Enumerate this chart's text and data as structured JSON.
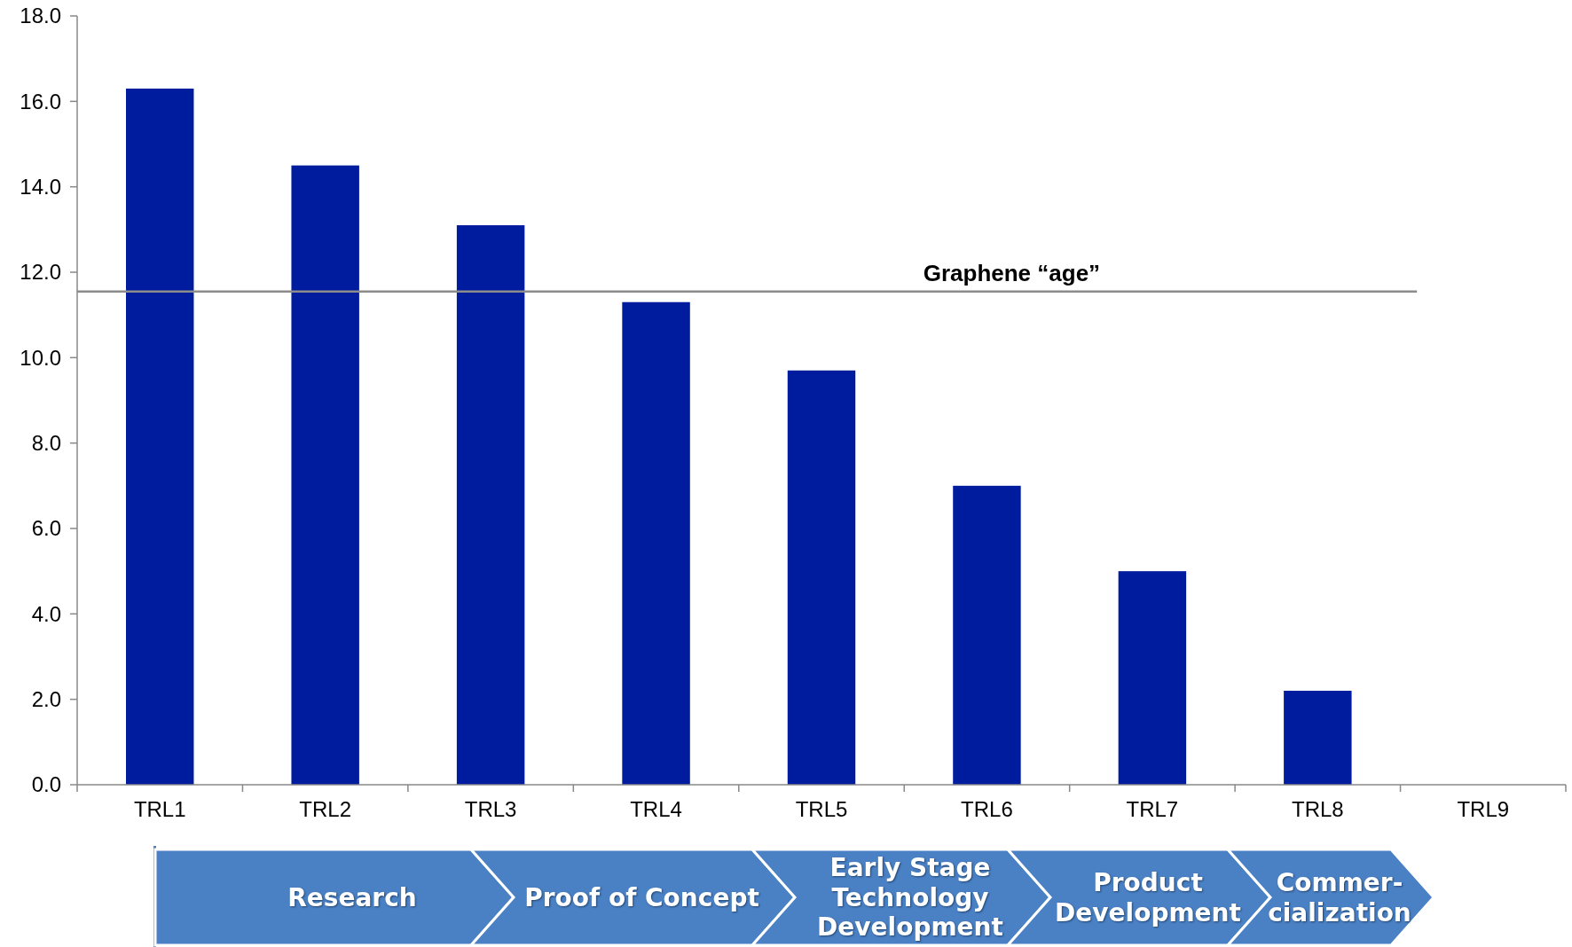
{
  "chart_data": {
    "type": "bar",
    "categories": [
      "TRL1",
      "TRL2",
      "TRL3",
      "TRL4",
      "TRL5",
      "TRL6",
      "TRL7",
      "TRL8",
      "TRL9"
    ],
    "values": [
      16.3,
      14.5,
      13.1,
      11.3,
      9.7,
      7.0,
      5.0,
      2.2,
      null
    ],
    "color": "#001c9e",
    "ylim": [
      0,
      18
    ],
    "yticks": [
      {
        "value": 0,
        "label": "0.0"
      },
      {
        "value": 2,
        "label": "2.0"
      },
      {
        "value": 4,
        "label": "4.0"
      },
      {
        "value": 6,
        "label": "6.0"
      },
      {
        "value": 8,
        "label": "8.0"
      },
      {
        "value": 10,
        "label": "10.0"
      },
      {
        "value": 12,
        "label": "12.0"
      },
      {
        "value": 14,
        "label": "14.0"
      },
      {
        "value": 16,
        "label": "16.0"
      },
      {
        "value": 18,
        "label": "18.0"
      }
    ],
    "grid": false,
    "ref_lines": [
      {
        "axis": "y",
        "value": 11.55,
        "label": "Graphene “age”",
        "color": "#8c8c8c"
      }
    ],
    "annotations": [
      "Research",
      "Proof of Concept",
      "Early Stage Technology Development",
      "Product Development",
      "Commer-cialization"
    ]
  }
}
